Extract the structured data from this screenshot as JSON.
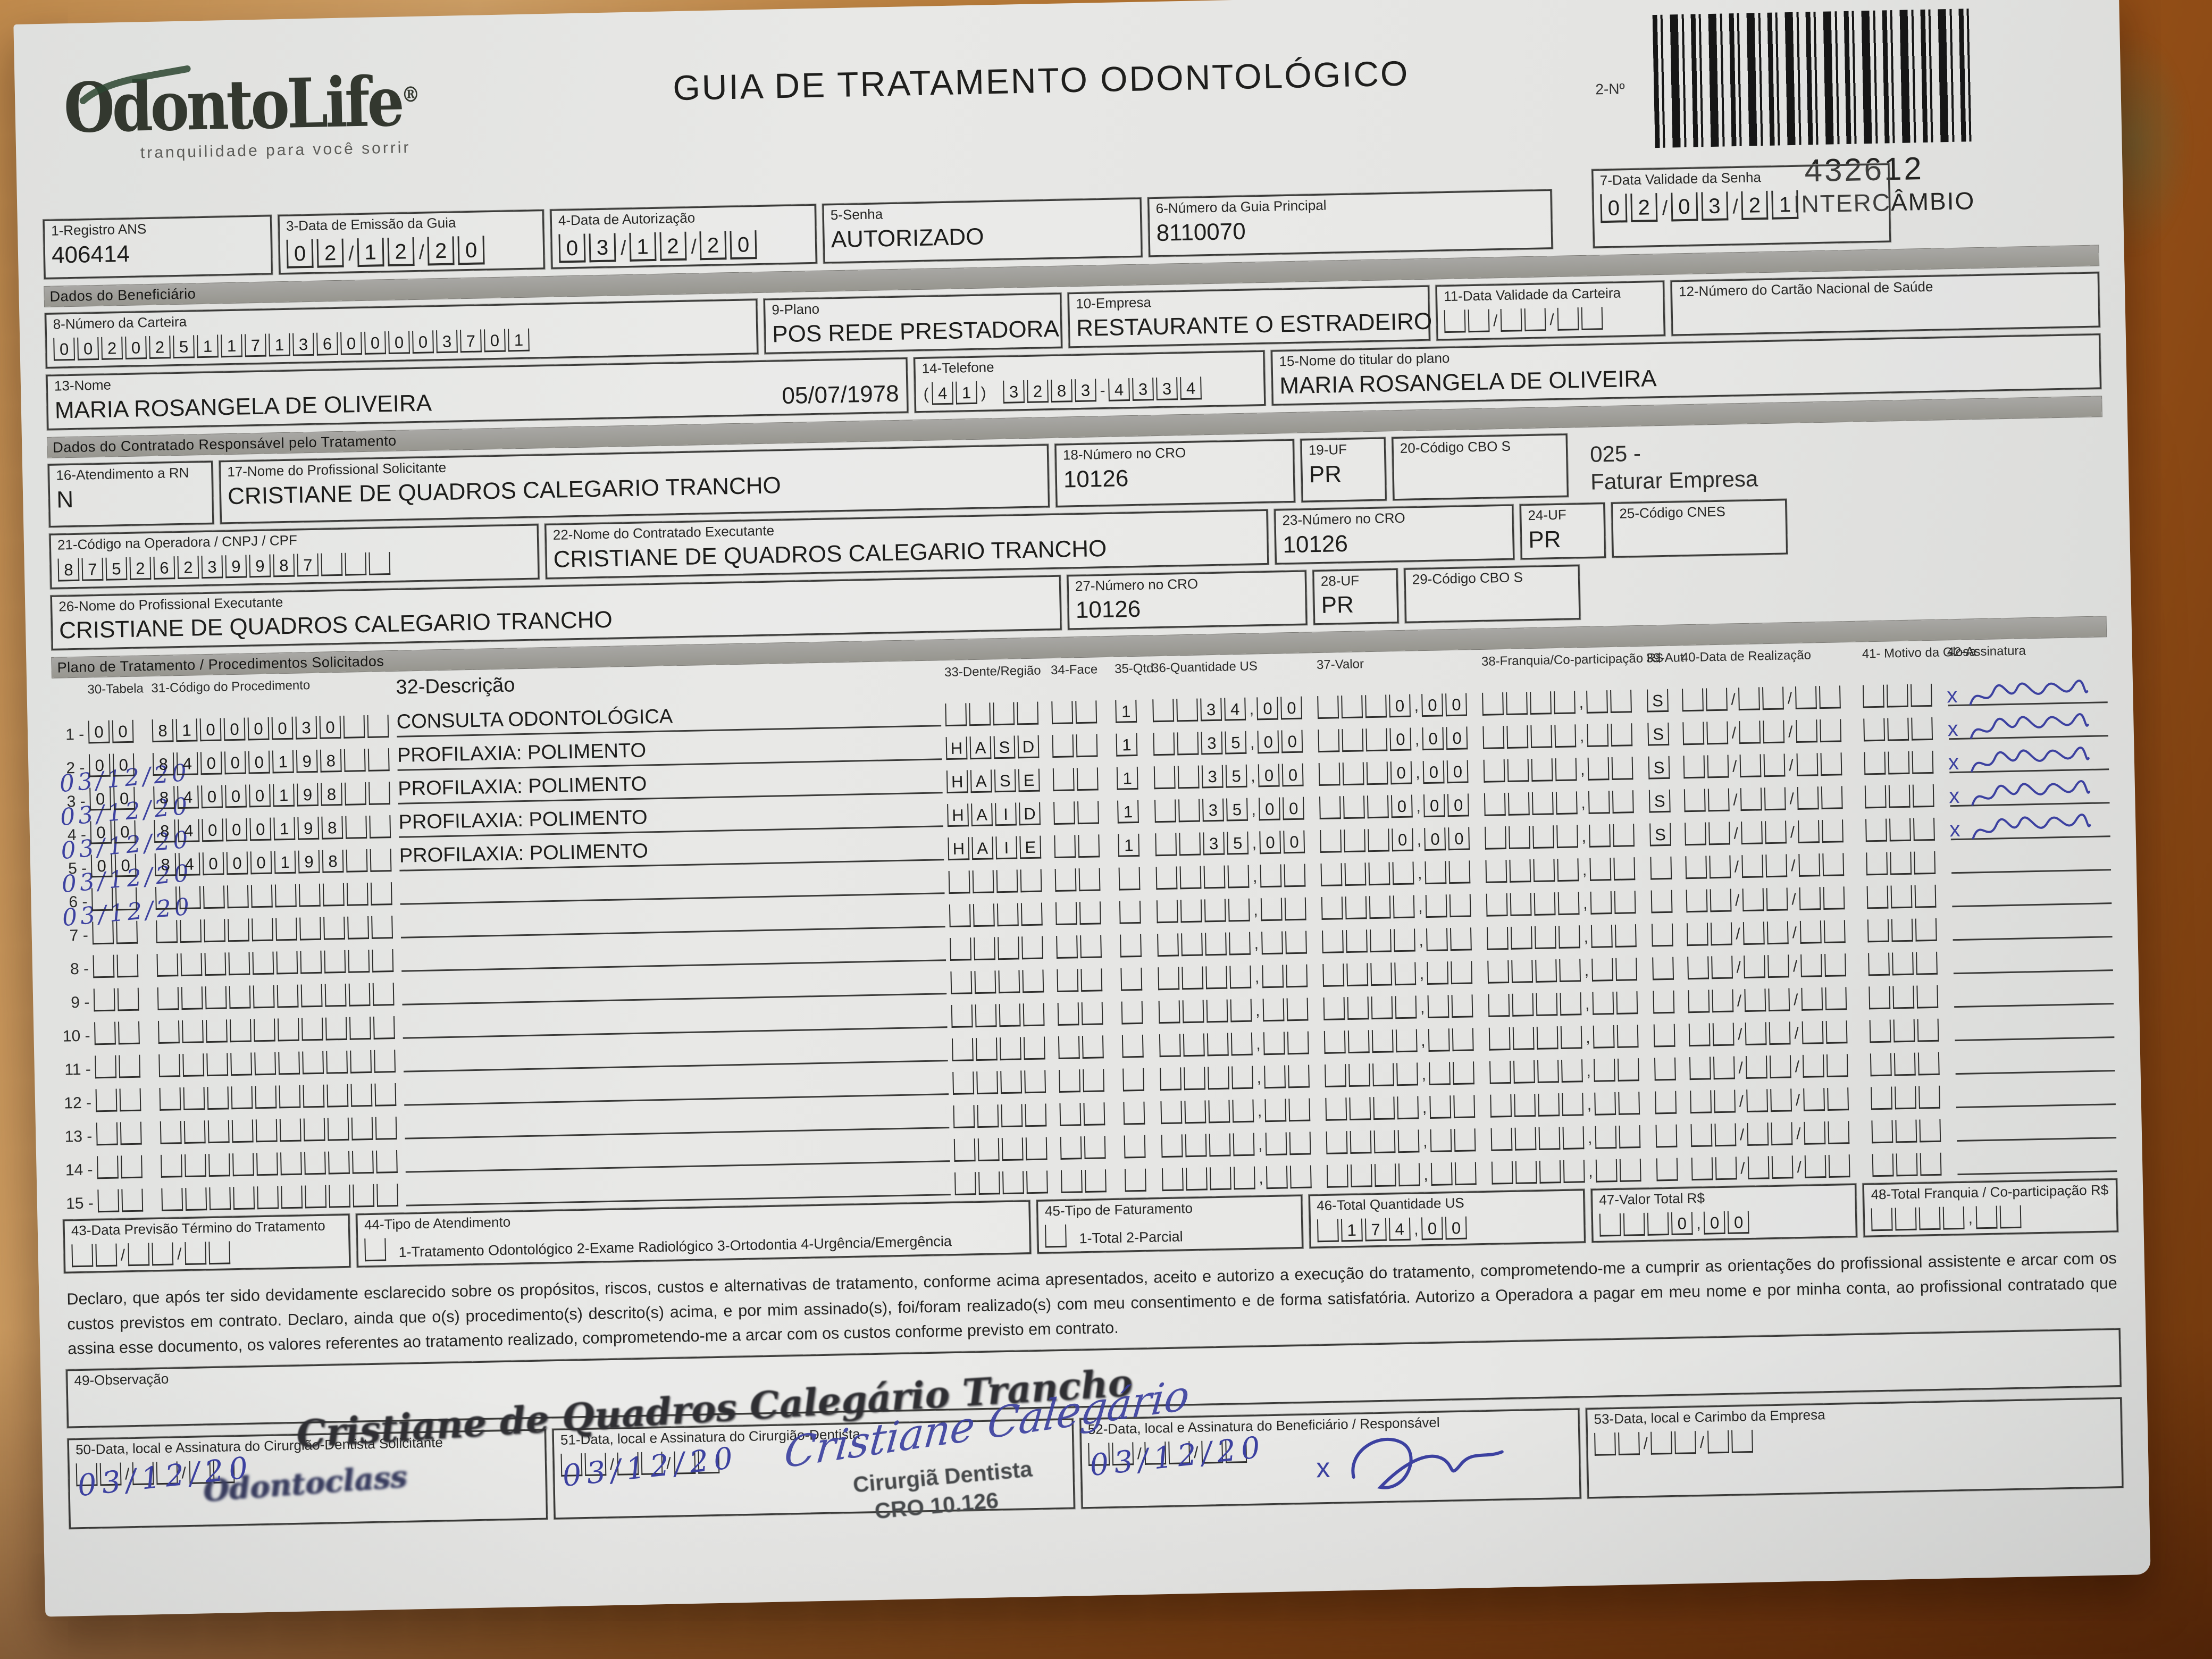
{
  "header": {
    "logo_text": "OdontoLife",
    "logo_reg": "®",
    "logo_tagline": "tranquilidade para você sorrir",
    "title": "GUIA DE TRATAMENTO ODONTOLÓGICO",
    "barcode_label": "2-Nº",
    "barcode_number": "432612",
    "barcode_sub": "INTERCÂMBIO"
  },
  "top": {
    "f1": {
      "label": "1-Registro ANS",
      "value": "406414"
    },
    "f3": {
      "label": "3-Data de Emissão da Guia",
      "comb": "02/12/20"
    },
    "f4": {
      "label": "4-Data de Autorização",
      "comb": "03/12/20"
    },
    "f5": {
      "label": "5-Senha",
      "value": "AUTORIZADO"
    },
    "f6": {
      "label": "6-Número da Guia Principal",
      "value": "8110070"
    },
    "f7": {
      "label": "7-Data Validade da Senha",
      "comb": "02/03/21"
    }
  },
  "beneficiario": {
    "section_title": "Dados do Beneficiário",
    "f8": {
      "label": "8-Número da Carteira",
      "comb": "00202511713600003701"
    },
    "f9": {
      "label": "9-Plano",
      "value": "POS REDE PRESTADORA"
    },
    "f10": {
      "label": "10-Empresa",
      "value": "RESTAURANTE O ESTRADEIRO"
    },
    "f11": {
      "label": "11-Data Validade da Carteira",
      "comb": "__/__/__"
    },
    "f12": {
      "label": "12-Número do Cartão Nacional de Saúde",
      "value": ""
    },
    "f13": {
      "label": "13-Nome",
      "value": "MARIA ROSANGELA DE OLIVEIRA",
      "date": "05/07/1978"
    },
    "f14": {
      "label": "14-Telefone",
      "comb": "(41) 3283-4334"
    },
    "f15": {
      "label": "15-Nome do titular do plano",
      "value": "MARIA ROSANGELA DE OLIVEIRA"
    }
  },
  "contratado": {
    "section_title": "Dados do Contratado Responsável pelo Tratamento",
    "f16": {
      "label": "16-Atendimento a RN",
      "value": "N"
    },
    "f17": {
      "label": "17-Nome do Profissional Solicitante",
      "value": "CRISTIANE DE QUADROS CALEGARIO TRANCHO"
    },
    "f18": {
      "label": "18-Número no CRO",
      "value": "10126"
    },
    "f19": {
      "label": "19-UF",
      "value": "PR"
    },
    "f20": {
      "label": "20-Código CBO S",
      "value": ""
    },
    "side_note_1": "025 -",
    "side_note_2": "Faturar Empresa",
    "f21": {
      "label": "21-Código na Operadora / CNPJ / CPF",
      "comb": "87526239987___"
    },
    "f22": {
      "label": "22-Nome do Contratado Executante",
      "value": "CRISTIANE DE QUADROS CALEGARIO TRANCHO"
    },
    "f23": {
      "label": "23-Número no CRO",
      "value": "10126"
    },
    "f24": {
      "label": "24-UF",
      "value": "PR"
    },
    "f25": {
      "label": "25-Código CNES",
      "value": ""
    },
    "f26": {
      "label": "26-Nome do Profissional Executante",
      "value": "CRISTIANE DE QUADROS CALEGARIO TRANCHO"
    },
    "f27": {
      "label": "27-Número no CRO",
      "value": "10126"
    },
    "f28": {
      "label": "28-UF",
      "value": "PR"
    },
    "f29": {
      "label": "29-Código CBO S",
      "value": ""
    }
  },
  "procedimentos": {
    "section_title": "Plano de Tratamento / Procedimentos Solicitados",
    "columns": {
      "c30": "30-Tabela",
      "c31": "31-Código do Procedimento",
      "c32": "32-Descrição",
      "c33": "33-Dente/Região",
      "c34": "34-Face",
      "c35": "35-Qtd",
      "c36": "36-Quantidade US",
      "c37": "37-Valor",
      "c38": "38-Franquia/Co-participação R$",
      "c39": "39-Aut",
      "c40": "40-Data de Realização",
      "c41": "41- Motivo da Glosa",
      "c42": "42-Assinatura"
    },
    "rows": [
      {
        "n": "1",
        "tabela": "00",
        "codigo": "81000030",
        "descricao": "CONSULTA ODONTOLÓGICA",
        "dente": "",
        "face": "",
        "qtd": "1",
        "quantidade_us": "34,00",
        "valor": "0,00",
        "franquia": "",
        "aut": "S",
        "data_realizacao": "03/12/20",
        "motivo": "",
        "signed": true
      },
      {
        "n": "2",
        "tabela": "00",
        "codigo": "84000198",
        "descricao": "PROFILAXIA: POLIMENTO",
        "dente": "HASD",
        "face": "",
        "qtd": "1",
        "quantidade_us": "35,00",
        "valor": "0,00",
        "franquia": "",
        "aut": "S",
        "data_realizacao": "03/12/20",
        "motivo": "",
        "signed": true
      },
      {
        "n": "3",
        "tabela": "00",
        "codigo": "84000198",
        "descricao": "PROFILAXIA: POLIMENTO",
        "dente": "HASE",
        "face": "",
        "qtd": "1",
        "quantidade_us": "35,00",
        "valor": "0,00",
        "franquia": "",
        "aut": "S",
        "data_realizacao": "03/12/20",
        "motivo": "",
        "signed": true
      },
      {
        "n": "4",
        "tabela": "00",
        "codigo": "84000198",
        "descricao": "PROFILAXIA: POLIMENTO",
        "dente": "HAID",
        "face": "",
        "qtd": "1",
        "quantidade_us": "35,00",
        "valor": "0,00",
        "franquia": "",
        "aut": "S",
        "data_realizacao": "03/12/20",
        "motivo": "",
        "signed": true
      },
      {
        "n": "5",
        "tabela": "00",
        "codigo": "84000198",
        "descricao": "PROFILAXIA: POLIMENTO",
        "dente": "HAIE",
        "face": "",
        "qtd": "1",
        "quantidade_us": "35,00",
        "valor": "0,00",
        "franquia": "",
        "aut": "S",
        "data_realizacao": "03/12/20",
        "motivo": "",
        "signed": true
      }
    ],
    "empty_row_numbers": [
      "6",
      "7",
      "8",
      "9",
      "10",
      "11",
      "12",
      "13",
      "14",
      "15"
    ]
  },
  "totais": {
    "f43": {
      "label": "43-Data Previsão Término do Tratamento",
      "comb": "__/__/__"
    },
    "f44": {
      "label": "44-Tipo de Atendimento",
      "checkbox": "_",
      "options": "1-Tratamento Odontológico  2-Exame Radiológico  3-Ortodontia  4-Urgência/Emergência"
    },
    "f45": {
      "label": "45-Tipo de Faturamento",
      "checkbox": "_",
      "options": "1-Total  2-Parcial"
    },
    "f46": {
      "label": "46-Total Quantidade US",
      "comb": "_174,00"
    },
    "f47": {
      "label": "47-Valor Total R$",
      "comb": "___0,00"
    },
    "f48": {
      "label": "48-Total Franquia / Co-participação R$",
      "comb": "____,__"
    }
  },
  "declaracao": "Declaro, que após ter sido devidamente esclarecido sobre os propósitos, riscos, custos e alternativas de tratamento, conforme acima apresentados, aceito e autorizo a execução do tratamento, comprometendo-me a cumprir as orientações do profissional assistente e arcar com os custos previstos em contrato. Declaro, ainda que o(s) procedimento(s) descrito(s) acima, e por mim assinado(s), foi/foram realizado(s) com meu consentimento e de forma satisfatória. Autorizo a Operadora a pagar em meu nome e por minha conta, ao profissional contratado que assina esse documento, os valores referentes ao tratamento realizado, comprometendo-me a arcar com os custos conforme previsto em contrato.",
  "observacao": {
    "label": "49-Observação"
  },
  "assinaturas": {
    "stamp_name": "Cristiane de Quadros Calegário Trancho",
    "f50": {
      "label": "50-Data, local e Assinatura do Cirurgião-Dentista Solicitante",
      "comb": "__/__/__",
      "date_hw": "03/12/20",
      "stamp": "Odontoclass"
    },
    "f51": {
      "label": "51-Data, local e Assinatura do Cirurgião-Dentista",
      "comb": "__/__/__",
      "date_hw": "03/12/20",
      "signature_hw": "Cristiane Calegário",
      "stamp_role": "Cirurgiã Dentista",
      "stamp_cro": "CRO 10.126"
    },
    "f52": {
      "label": "52-Data, local e Assinatura do Beneficiário / Responsável",
      "comb": "__/__/__",
      "date_hw": "03/12/20"
    },
    "f53": {
      "label": "53-Data, local e Carimbo da Empresa",
      "comb": "__/__/__"
    }
  }
}
